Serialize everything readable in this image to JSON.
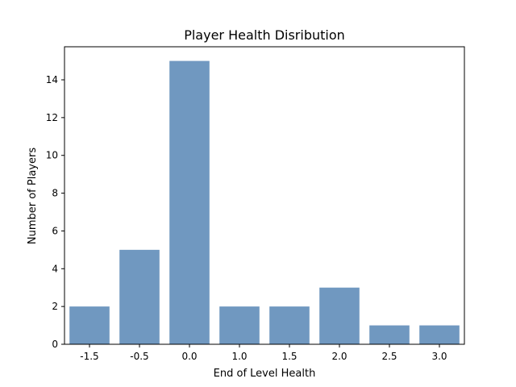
{
  "chart_data": {
    "type": "bar",
    "title": "Player Health Disribution",
    "xlabel": "End of Level Health",
    "ylabel": "Number of Players",
    "categories": [
      "-1.5",
      "-0.5",
      "0.0",
      "1.0",
      "1.5",
      "2.0",
      "2.5",
      "3.0"
    ],
    "values": [
      2,
      5,
      15,
      2,
      2,
      3,
      1,
      1
    ],
    "ylim": [
      0,
      15.75
    ],
    "yticks": [
      "0",
      "2",
      "4",
      "6",
      "8",
      "10",
      "12",
      "14"
    ],
    "grid": false,
    "legend": "none",
    "bar_color": "#7098c0"
  }
}
